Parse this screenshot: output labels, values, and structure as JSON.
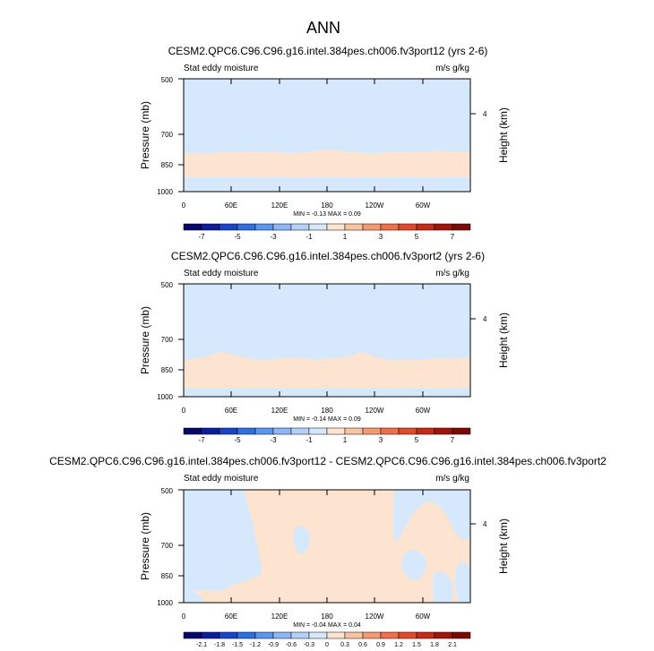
{
  "main_title": "ANN",
  "colors": {
    "negative_light": "#d6e8fb",
    "positive_light": "#fde4d0",
    "neg_scale": [
      "#08086b",
      "#0a1e9c",
      "#1a44c8",
      "#2f6fe0",
      "#5b95ee",
      "#8cb6f4",
      "#b5d0f8",
      "#d6e8fb"
    ],
    "pos_scale": [
      "#fde4d0",
      "#f9c3a2",
      "#f59b73",
      "#ee6f4b",
      "#df4a2c",
      "#c42a17",
      "#a0150b",
      "#7a0a04"
    ]
  },
  "chart_data": [
    {
      "type": "heatmap",
      "title": "CESM2.QPC6.C96.C96.g16.intel.384pes.ch006.fv3port12 (yrs 2-6)",
      "left_subtitle": "Stat eddy moisture",
      "right_subtitle": "m/s g/kg",
      "ylabel": "Pressure (mb)",
      "ylabel_right": "Height (km)",
      "y_ticks": [
        "500",
        "700",
        "850",
        "1000"
      ],
      "right_ticks": [
        "4"
      ],
      "x_ticks": [
        "0",
        "60E",
        "120E",
        "180",
        "120W",
        "60W"
      ],
      "min_max": "MIN = -0.13  MAX = 0.09",
      "colorbar_labels": [
        "-7",
        "-5",
        "-3",
        "-1",
        "1",
        "3",
        "5",
        "7"
      ],
      "positive_band_top_mb": [
        790,
        788,
        790,
        785,
        783,
        786,
        780,
        782,
        785,
        790,
        786,
        780,
        775,
        778,
        784,
        788,
        790,
        786,
        780,
        783,
        785,
        778,
        780,
        784,
        786
      ],
      "positive_band_bottom_mb": [
        915,
        918,
        916,
        915,
        917,
        914,
        916,
        918,
        915,
        916,
        918,
        915,
        914,
        916,
        917,
        915,
        916,
        918,
        915,
        914,
        916,
        917,
        915,
        916,
        915
      ]
    },
    {
      "type": "heatmap",
      "title": "CESM2.QPC6.C96.C96.g16.intel.384pes.ch006.fv3port2 (yrs 2-6)",
      "left_subtitle": "Stat eddy moisture",
      "right_subtitle": "m/s g/kg",
      "ylabel": "Pressure (mb)",
      "ylabel_right": "Height (km)",
      "y_ticks": [
        "500",
        "700",
        "850",
        "1000"
      ],
      "right_ticks": [
        "4"
      ],
      "x_ticks": [
        "0",
        "60E",
        "120E",
        "180",
        "120W",
        "60W"
      ],
      "min_max": "MIN = -0.14  MAX = 0.09",
      "colorbar_labels": [
        "-7",
        "-5",
        "-3",
        "-1",
        "1",
        "3",
        "5",
        "7"
      ],
      "positive_band_top_mb": [
        800,
        790,
        780,
        760,
        770,
        785,
        795,
        800,
        790,
        785,
        790,
        795,
        792,
        788,
        780,
        760,
        785,
        795,
        800,
        798,
        795,
        790,
        792,
        788,
        790
      ],
      "positive_band_bottom_mb": [
        950,
        952,
        950,
        951,
        949,
        950,
        952,
        951,
        950,
        949,
        951,
        950,
        952,
        950,
        951,
        950,
        949,
        951,
        950,
        952,
        951,
        950,
        949,
        951,
        950
      ]
    },
    {
      "type": "heatmap",
      "title": "CESM2.QPC6.C96.C96.g16.intel.384pes.ch006.fv3port12 - CESM2.QPC6.C96.C96.g16.intel.384pes.ch006.fv3port2",
      "left_subtitle": "Stat eddy moisture",
      "right_subtitle": "m/s g/kg",
      "ylabel": "Pressure (mb)",
      "ylabel_right": "Height (km)",
      "y_ticks": [
        "500",
        "700",
        "850",
        "1000"
      ],
      "right_ticks": [
        "4"
      ],
      "x_ticks": [
        "0",
        "60E",
        "120E",
        "180",
        "120W",
        "60W"
      ],
      "min_max": "MIN = -0.04  MAX = 0.04",
      "colorbar_labels": [
        "-2.1",
        "-1.8",
        "-1.5",
        "-1.2",
        "-0.9",
        "-0.6",
        "-0.3",
        "0",
        "0.3",
        "0.6",
        "0.9",
        "1.2",
        "1.5",
        "1.8",
        "2.1"
      ]
    }
  ]
}
